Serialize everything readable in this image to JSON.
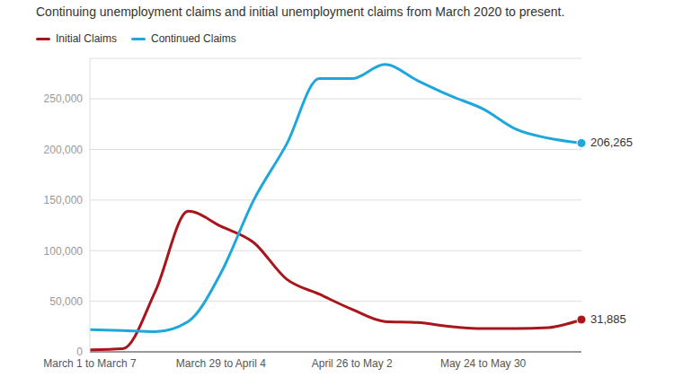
{
  "chart_data": {
    "type": "line",
    "title": "Continuing unemployment claims and initial unemployment claims from March 2020 to present.",
    "categories": [
      "March 1 to March 7",
      null,
      null,
      null,
      "March 29 to April 4",
      null,
      null,
      null,
      "April 26 to May 2",
      null,
      null,
      null,
      "May 24 to May 30",
      null,
      null,
      null
    ],
    "series": [
      {
        "name": "Initial Claims",
        "color": "#a8151b",
        "marker": "last",
        "values": [
          2000,
          3000,
          60000,
          139000,
          124000,
          108000,
          72000,
          57000,
          42000,
          30000,
          29000,
          25000,
          23000,
          23000,
          24000,
          31885
        ],
        "value_labels": [
          null,
          null,
          null,
          null,
          null,
          null,
          null,
          null,
          null,
          null,
          null,
          null,
          null,
          null,
          null,
          "31,885"
        ]
      },
      {
        "name": "Continued Claims",
        "color": "#1ea7dc",
        "marker": "last",
        "values": [
          22000,
          21000,
          20000,
          30000,
          78000,
          150000,
          205000,
          270000,
          270000,
          284000,
          268000,
          253000,
          240000,
          220000,
          211000,
          206265
        ],
        "value_labels": [
          null,
          null,
          null,
          null,
          null,
          null,
          null,
          null,
          null,
          null,
          null,
          null,
          null,
          null,
          null,
          "206,265"
        ]
      }
    ],
    "ylim": [
      0,
      290000
    ],
    "yticks": [
      0,
      {
        "value": 50000,
        "label": "50,000"
      },
      {
        "value": 100000,
        "label": "100,000"
      },
      {
        "value": 150000,
        "label": "150,000"
      },
      {
        "value": 200000,
        "label": "200,000"
      },
      {
        "value": 250000,
        "label": "250,000"
      }
    ],
    "grid": true,
    "legend": "top-left"
  }
}
